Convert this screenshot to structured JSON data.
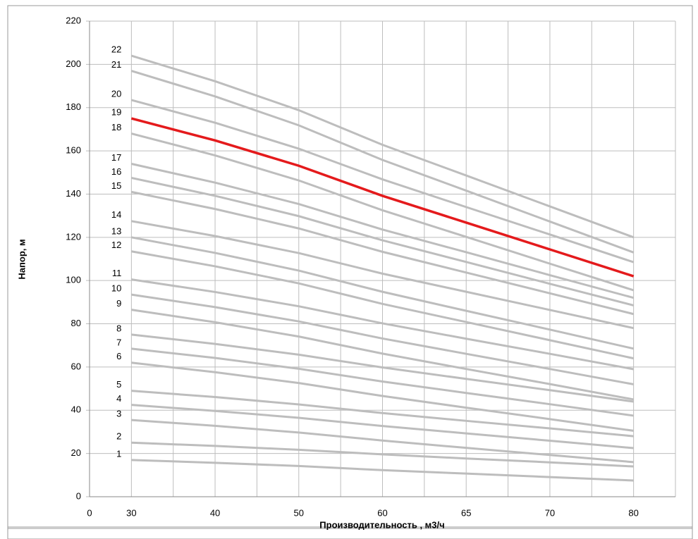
{
  "chart_data": {
    "type": "line",
    "x_title": "Производительность , м3/ч",
    "y_title": "Напор, м",
    "categories": [
      "0",
      "30",
      "40",
      "50",
      "60",
      "65",
      "70",
      "80"
    ],
    "ylim": [
      0,
      220
    ],
    "yticks": [
      0,
      20,
      40,
      60,
      80,
      100,
      120,
      140,
      160,
      180,
      200,
      220
    ],
    "grid": true,
    "series": [
      {
        "name": "1",
        "color": "#bdbdbd",
        "values": [
          null,
          17,
          15.7,
          14.2,
          12.3,
          10.7,
          9.1,
          7.5
        ]
      },
      {
        "name": "2",
        "color": "#bdbdbd",
        "values": [
          null,
          25,
          23.5,
          21.7,
          19.6,
          17.7,
          15.9,
          14
        ]
      },
      {
        "name": "3",
        "color": "#bdbdbd",
        "values": [
          null,
          35.5,
          32.8,
          29.7,
          26,
          22.6,
          19.3,
          16
        ]
      },
      {
        "name": "4",
        "color": "#bdbdbd",
        "values": [
          null,
          42.5,
          39.7,
          36.5,
          32.7,
          29.3,
          25.9,
          22.5
        ]
      },
      {
        "name": "5",
        "color": "#bdbdbd",
        "values": [
          null,
          49,
          46.1,
          42.7,
          38.7,
          35.1,
          31.6,
          28
        ]
      },
      {
        "name": "6",
        "color": "#bdbdbd",
        "values": [
          null,
          62,
          57.6,
          52.6,
          46.6,
          41.2,
          35.9,
          30.5
        ]
      },
      {
        "name": "7",
        "color": "#bdbdbd",
        "values": [
          null,
          68.5,
          64.2,
          59.2,
          53.3,
          48,
          42.8,
          37.5
        ]
      },
      {
        "name": "8",
        "color": "#bdbdbd",
        "values": [
          null,
          75,
          70.7,
          65.7,
          59.8,
          54.5,
          49.3,
          44
        ]
      },
      {
        "name": "9",
        "color": "#bdbdbd",
        "values": [
          null,
          86.5,
          80.7,
          74.1,
          66.2,
          59.1,
          52.1,
          45
        ]
      },
      {
        "name": "10",
        "color": "#bdbdbd",
        "values": [
          null,
          93.5,
          87.7,
          81.1,
          73.2,
          66.1,
          59.1,
          52
        ]
      },
      {
        "name": "11",
        "color": "#bdbdbd",
        "values": [
          null,
          100.5,
          94.7,
          88.1,
          80.2,
          73.1,
          66.1,
          59
        ]
      },
      {
        "name": "12",
        "color": "#bdbdbd",
        "values": [
          null,
          113.5,
          106.6,
          98.7,
          89.2,
          80.8,
          72.4,
          64
        ]
      },
      {
        "name": "13",
        "color": "#bdbdbd",
        "values": [
          null,
          120,
          112.8,
          104.6,
          94.8,
          86,
          77.3,
          68.5
        ]
      },
      {
        "name": "14",
        "color": "#bdbdbd",
        "values": [
          null,
          127.5,
          120.6,
          112.7,
          103.2,
          94.8,
          86.4,
          78
        ]
      },
      {
        "name": "15",
        "color": "#bdbdbd",
        "values": [
          null,
          141,
          133.1,
          124.1,
          113.3,
          103.7,
          94.1,
          84.5
        ]
      },
      {
        "name": "16",
        "color": "#bdbdbd",
        "values": [
          null,
          147.5,
          139.2,
          129.8,
          118.6,
          108.6,
          98.5,
          88.5
        ]
      },
      {
        "name": "17",
        "color": "#bdbdbd",
        "values": [
          null,
          154,
          145.3,
          135.4,
          123.6,
          113.1,
          102.5,
          92
        ]
      },
      {
        "name": "18",
        "color": "#bdbdbd",
        "values": [
          null,
          168,
          157.9,
          146.3,
          132.5,
          120.2,
          107.8,
          95.5
        ]
      },
      {
        "name": "19",
        "color": "#e41a1c",
        "values": [
          null,
          175,
          164.8,
          153.1,
          139.2,
          126.8,
          114.4,
          102
        ]
      },
      {
        "name": "20",
        "color": "#bdbdbd",
        "values": [
          null,
          183.5,
          173,
          161,
          146.8,
          134,
          121.3,
          108.5
        ]
      },
      {
        "name": "21",
        "color": "#bdbdbd",
        "values": [
          null,
          197,
          185.2,
          171.8,
          155.8,
          141.6,
          127.3,
          113
        ]
      },
      {
        "name": "22",
        "color": "#bdbdbd",
        "values": [
          null,
          204,
          192.2,
          178.8,
          162.8,
          148.6,
          134.3,
          120
        ]
      }
    ]
  }
}
